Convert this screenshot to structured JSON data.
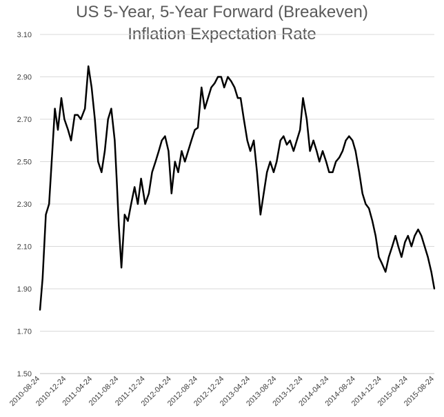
{
  "chart_data": {
    "type": "line",
    "title": "US 5-Year, 5-Year Forward (Breakeven)",
    "subtitle": "Inflation Expectation Rate",
    "xlabel": "",
    "ylabel": "",
    "ylim": [
      1.5,
      3.1
    ],
    "yticks": [
      "1.50",
      "1.70",
      "1.90",
      "2.10",
      "2.30",
      "2.50",
      "2.70",
      "2.90",
      "3.10"
    ],
    "xticks": [
      "2010-08-24",
      "2010-12-24",
      "2011-04-24",
      "2011-08-24",
      "2011-12-24",
      "2012-04-24",
      "2012-08-24",
      "2012-12-24",
      "2013-04-24",
      "2013-08-24",
      "2013-12-24",
      "2014-04-24",
      "2014-08-24",
      "2014-12-24",
      "2015-04-24",
      "2015-08-24"
    ],
    "grid": true,
    "legend": "none",
    "line_color": "#000000",
    "series": [
      {
        "x": [
          "2010-08-24",
          "2010-09-05",
          "2010-09-20",
          "2010-10-05",
          "2010-10-20",
          "2010-11-01",
          "2010-11-15",
          "2010-12-01",
          "2010-12-15",
          "2011-01-01",
          "2011-01-15",
          "2011-02-01",
          "2011-02-15",
          "2011-03-01",
          "2011-03-20",
          "2011-04-05",
          "2011-04-20",
          "2011-05-05",
          "2011-05-20",
          "2011-06-05",
          "2011-06-20",
          "2011-07-05",
          "2011-07-20",
          "2011-08-05",
          "2011-08-15",
          "2011-08-24",
          "2011-09-05",
          "2011-09-20",
          "2011-10-05",
          "2011-10-20",
          "2011-11-05",
          "2011-11-20",
          "2011-12-05",
          "2011-12-24",
          "2012-01-10",
          "2012-01-25",
          "2012-02-10",
          "2012-02-25",
          "2012-03-10",
          "2012-03-25",
          "2012-04-10",
          "2012-04-24",
          "2012-05-10",
          "2012-05-25",
          "2012-06-10",
          "2012-06-25",
          "2012-07-10",
          "2012-07-25",
          "2012-08-10",
          "2012-08-24",
          "2012-09-10",
          "2012-09-25",
          "2012-10-10",
          "2012-10-25",
          "2012-11-10",
          "2012-11-25",
          "2012-12-10",
          "2012-12-24",
          "2013-01-10",
          "2013-01-25",
          "2013-02-10",
          "2013-02-25",
          "2013-03-10",
          "2013-03-25",
          "2013-04-10",
          "2013-04-24",
          "2013-05-10",
          "2013-05-25",
          "2013-06-10",
          "2013-06-25",
          "2013-07-10",
          "2013-07-25",
          "2013-08-10",
          "2013-08-24",
          "2013-09-10",
          "2013-09-25",
          "2013-10-10",
          "2013-10-25",
          "2013-11-10",
          "2013-11-25",
          "2013-12-10",
          "2013-12-24",
          "2014-01-10",
          "2014-01-25",
          "2014-02-10",
          "2014-02-25",
          "2014-03-10",
          "2014-03-25",
          "2014-04-10",
          "2014-04-24",
          "2014-05-10",
          "2014-05-25",
          "2014-06-10",
          "2014-06-25",
          "2014-07-10",
          "2014-07-25",
          "2014-08-10",
          "2014-08-24",
          "2014-09-10",
          "2014-09-25",
          "2014-10-10",
          "2014-10-25",
          "2014-11-10",
          "2014-11-25",
          "2014-12-10",
          "2014-12-24",
          "2015-01-10",
          "2015-01-25",
          "2015-02-10",
          "2015-02-25",
          "2015-03-10",
          "2015-03-25",
          "2015-04-10",
          "2015-04-24",
          "2015-05-10",
          "2015-05-25",
          "2015-06-10",
          "2015-06-25",
          "2015-07-10",
          "2015-07-25",
          "2015-08-10",
          "2015-08-24"
        ],
        "values": [
          1.8,
          1.95,
          2.25,
          2.3,
          2.55,
          2.75,
          2.65,
          2.8,
          2.7,
          2.65,
          2.6,
          2.72,
          2.72,
          2.7,
          2.75,
          2.95,
          2.85,
          2.7,
          2.5,
          2.45,
          2.55,
          2.7,
          2.75,
          2.6,
          2.4,
          2.2,
          2.0,
          2.25,
          2.22,
          2.3,
          2.38,
          2.3,
          2.42,
          2.3,
          2.35,
          2.45,
          2.5,
          2.55,
          2.6,
          2.62,
          2.55,
          2.35,
          2.5,
          2.45,
          2.55,
          2.5,
          2.55,
          2.6,
          2.65,
          2.66,
          2.85,
          2.75,
          2.8,
          2.85,
          2.87,
          2.9,
          2.9,
          2.85,
          2.9,
          2.88,
          2.85,
          2.8,
          2.8,
          2.7,
          2.6,
          2.55,
          2.6,
          2.45,
          2.25,
          2.35,
          2.45,
          2.5,
          2.45,
          2.5,
          2.6,
          2.62,
          2.58,
          2.6,
          2.55,
          2.6,
          2.65,
          2.8,
          2.7,
          2.55,
          2.6,
          2.55,
          2.5,
          2.55,
          2.5,
          2.45,
          2.45,
          2.5,
          2.52,
          2.55,
          2.6,
          2.62,
          2.6,
          2.55,
          2.45,
          2.35,
          2.3,
          2.28,
          2.22,
          2.15,
          2.05,
          2.02,
          1.98,
          2.05,
          2.1,
          2.15,
          2.1,
          2.05,
          2.12,
          2.15,
          2.1,
          2.15,
          2.18,
          2.15,
          2.1,
          2.05,
          1.98,
          1.9
        ]
      }
    ]
  }
}
